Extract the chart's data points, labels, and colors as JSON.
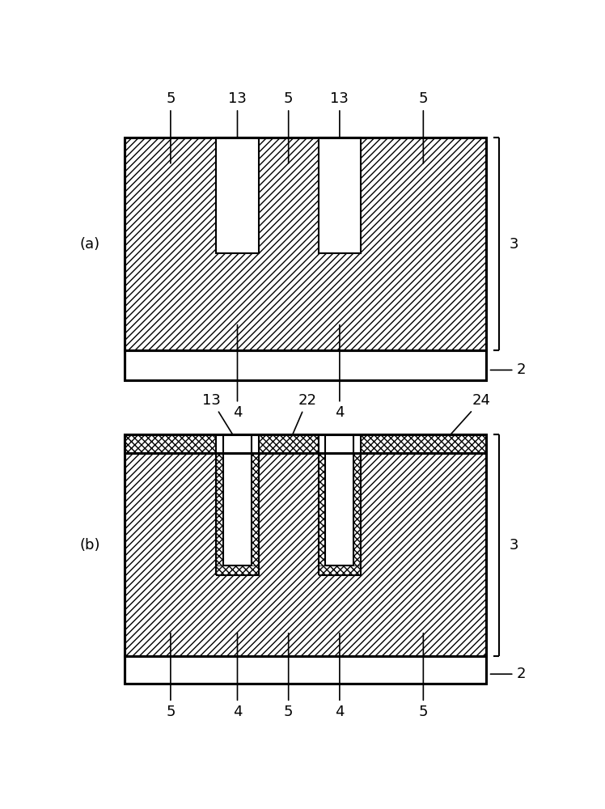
{
  "bg_color": "#ffffff",
  "line_color": "#000000",
  "fig_width": 7.48,
  "fig_height": 10.0
}
